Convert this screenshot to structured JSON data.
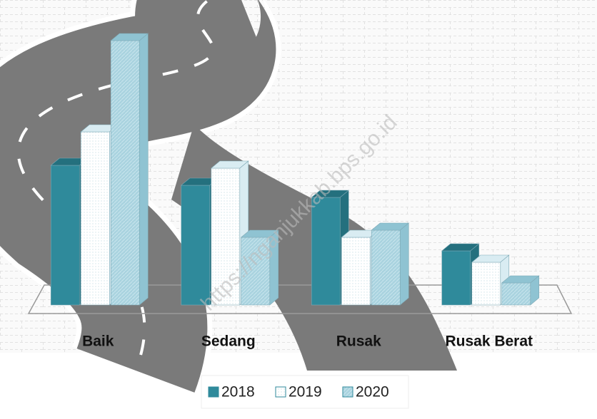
{
  "chart_data": {
    "type": "bar3d",
    "categories": [
      "Baik",
      "Sedang",
      "Rusak",
      "Rusak Berat"
    ],
    "series": [
      {
        "name": "2018",
        "color": "#2f8a9b",
        "values": [
          196,
          168,
          151,
          76
        ]
      },
      {
        "name": "2019",
        "color": "#ffffff",
        "values": [
          243,
          192,
          95,
          60
        ]
      },
      {
        "name": "2020",
        "color": "#a9d3df",
        "values": [
          371,
          95,
          105,
          31
        ]
      }
    ],
    "ylim": [
      0,
      400
    ],
    "watermark": "https://nganjukkab.bps.go.id"
  }
}
